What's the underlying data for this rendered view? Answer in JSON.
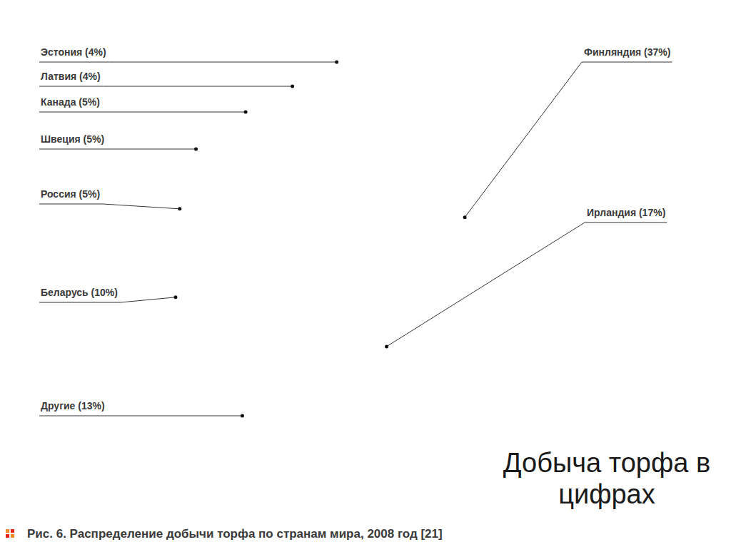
{
  "chart_data": {
    "type": "pie",
    "title": "Рис. 6. Распределение добычи торфа по странам мира, 2008 год [21]",
    "subtitle": "Добыча торфа в цифрах",
    "categories": [
      "Финляндия (37%)",
      "Ирландия (17%)",
      "Другие (13%)",
      "Беларусь (10%)",
      "Россия (5%)",
      "Швеция (5%)",
      "Канада (5%)",
      "Латвия (4%)",
      "Эстония (4%)"
    ],
    "values": [
      37,
      17,
      13,
      10,
      5,
      5,
      5,
      4,
      4
    ],
    "value_labels": [
      "37%",
      "17%",
      "13%",
      "10%",
      "5%",
      "5%",
      "5%",
      "4%",
      "4%"
    ],
    "colors": [
      "#1ca6d8",
      "#0b7cc0",
      "#3a2b95",
      "#0ea552",
      "#e2241d",
      "#e3128b",
      "#f1890b",
      "#5d6973",
      "#cfd5da"
    ],
    "data_labels": true
  }
}
